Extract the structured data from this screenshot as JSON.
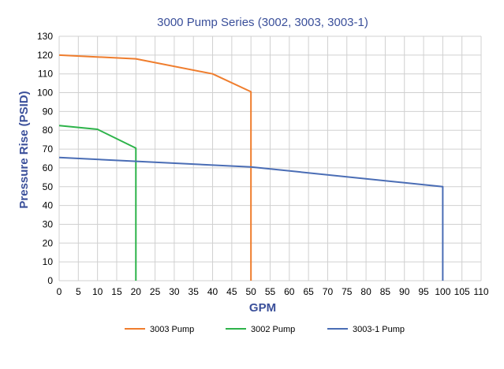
{
  "chart_data": {
    "type": "line",
    "title": "3000 Pump Series (3002, 3003, 3003-1)",
    "xlabel": "GPM",
    "ylabel": "Pressure Rise (PSID)",
    "xlim": [
      0,
      110
    ],
    "ylim": [
      0,
      130
    ],
    "xticks": [
      0,
      5,
      10,
      15,
      20,
      25,
      30,
      35,
      40,
      45,
      50,
      55,
      60,
      65,
      70,
      75,
      80,
      85,
      90,
      95,
      100,
      105,
      110
    ],
    "yticks": [
      0,
      10,
      20,
      30,
      40,
      50,
      60,
      70,
      80,
      90,
      100,
      110,
      120,
      130
    ],
    "grid": true,
    "legend_position": "bottom",
    "series": [
      {
        "name": "3003 Pump",
        "color": "#ef7d2d",
        "points": [
          [
            0,
            120
          ],
          [
            20,
            118
          ],
          [
            40,
            110
          ],
          [
            50,
            100.5
          ],
          [
            50,
            0
          ]
        ]
      },
      {
        "name": "3002 Pump",
        "color": "#2db34a",
        "points": [
          [
            0,
            82.5
          ],
          [
            10,
            80.5
          ],
          [
            20,
            70.5
          ],
          [
            20,
            0
          ]
        ]
      },
      {
        "name": "3003-1 Pump",
        "color": "#4a6db5",
        "points": [
          [
            0,
            65.5
          ],
          [
            50,
            60.5
          ],
          [
            100,
            50
          ],
          [
            100,
            0
          ]
        ]
      }
    ]
  }
}
